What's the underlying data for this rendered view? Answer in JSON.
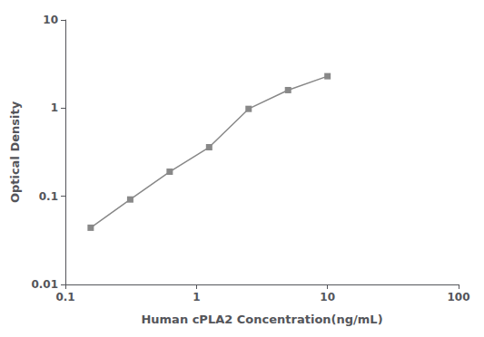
{
  "chart_data": {
    "type": "line",
    "x": [
      0.156,
      0.3125,
      0.625,
      1.25,
      2.5,
      5.0,
      10.0
    ],
    "values": [
      0.044,
      0.092,
      0.19,
      0.36,
      0.98,
      1.6,
      2.3
    ],
    "xlabel": "Human cPLA2 Concentration(ng/mL)",
    "ylabel": "Optical Density",
    "xlim": [
      0.1,
      100
    ],
    "ylim": [
      0.01,
      10
    ],
    "xticks": [
      0.1,
      1,
      10,
      100
    ],
    "yticks": [
      0.01,
      0.1,
      1,
      10
    ],
    "log": true,
    "grid": false,
    "color": "#888888",
    "marker": "square"
  }
}
